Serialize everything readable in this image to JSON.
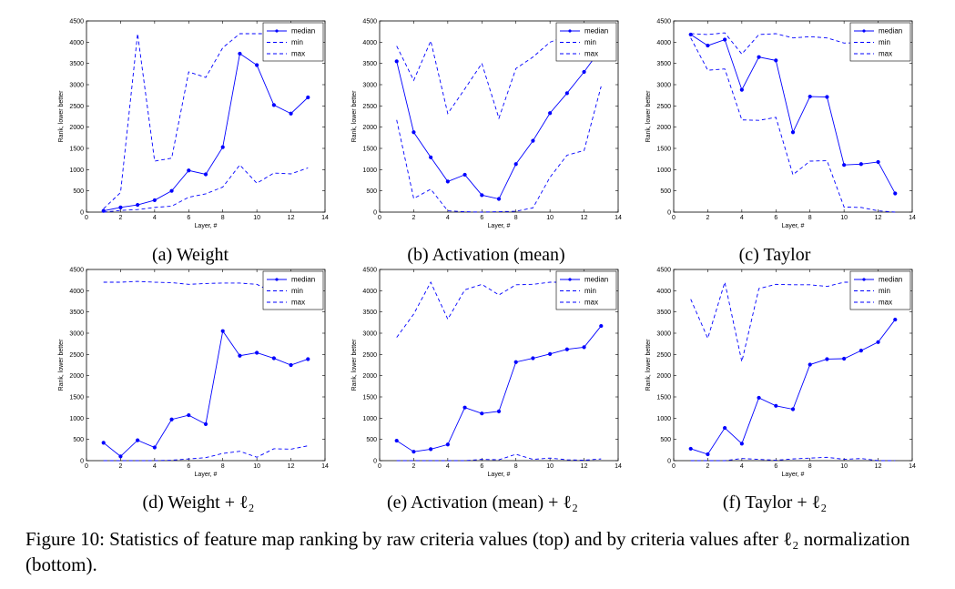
{
  "figure_caption": "Figure 10: Statistics of feature map ranking by raw criteria values (top) and by criteria values after ℓ₂ normalization (bottom).",
  "colors": {
    "line": "#0000ff",
    "axis": "#000000"
  },
  "chart_data": [
    {
      "type": "line",
      "caption": "(a) Weight",
      "xlabel": "Layer, #",
      "ylabel": "Rank, lower better",
      "xlim": [
        0,
        14
      ],
      "ylim": [
        0,
        4500
      ],
      "xticks": [
        0,
        2,
        4,
        6,
        8,
        10,
        12,
        14
      ],
      "yticks": [
        0,
        500,
        1000,
        1500,
        2000,
        2500,
        3000,
        3500,
        4000,
        4500
      ],
      "legend": "top-right",
      "x": [
        1,
        2,
        3,
        4,
        5,
        6,
        7,
        8,
        9,
        10,
        11,
        12,
        13
      ],
      "series": [
        {
          "name": "median",
          "style": "solid-marker",
          "values": [
            30,
            110,
            170,
            280,
            500,
            980,
            890,
            1530,
            3730,
            3460,
            2520,
            2320,
            2700
          ]
        },
        {
          "name": "min",
          "style": "dashed",
          "values": [
            0,
            40,
            60,
            110,
            140,
            350,
            430,
            590,
            1110,
            680,
            920,
            900,
            1040
          ]
        },
        {
          "name": "max",
          "style": "dashed",
          "values": [
            80,
            460,
            4200,
            1200,
            1270,
            3300,
            3170,
            3870,
            4200,
            4200,
            4200,
            4200,
            4200
          ]
        }
      ]
    },
    {
      "type": "line",
      "caption": "(b) Activation (mean)",
      "xlabel": "Layer, #",
      "ylabel": "Rank, lower better",
      "xlim": [
        0,
        14
      ],
      "ylim": [
        0,
        4500
      ],
      "xticks": [
        0,
        2,
        4,
        6,
        8,
        10,
        12,
        14
      ],
      "yticks": [
        0,
        500,
        1000,
        1500,
        2000,
        2500,
        3000,
        3500,
        4000,
        4500
      ],
      "legend": "top-right",
      "x": [
        1,
        2,
        3,
        4,
        5,
        6,
        7,
        8,
        9,
        10,
        11,
        12,
        13
      ],
      "series": [
        {
          "name": "median",
          "style": "solid-marker",
          "values": [
            3550,
            1880,
            1290,
            720,
            880,
            400,
            310,
            1130,
            1680,
            2330,
            2800,
            3300,
            3850
          ]
        },
        {
          "name": "min",
          "style": "dashed",
          "values": [
            2170,
            320,
            540,
            30,
            10,
            0,
            10,
            20,
            100,
            820,
            1340,
            1450,
            2960
          ]
        },
        {
          "name": "max",
          "style": "dashed",
          "values": [
            3910,
            3100,
            4030,
            2320,
            2900,
            3500,
            2210,
            3380,
            3650,
            4000,
            4150,
            4200,
            4200
          ]
        }
      ]
    },
    {
      "type": "line",
      "caption": "(c) Taylor",
      "xlabel": "Layer, #",
      "ylabel": "Rank, lower better",
      "xlim": [
        0,
        14
      ],
      "ylim": [
        0,
        4500
      ],
      "xticks": [
        0,
        2,
        4,
        6,
        8,
        10,
        12,
        14
      ],
      "yticks": [
        0,
        500,
        1000,
        1500,
        2000,
        2500,
        3000,
        3500,
        4000,
        4500
      ],
      "legend": "top-right",
      "x": [
        1,
        2,
        3,
        4,
        5,
        6,
        7,
        8,
        9,
        10,
        11,
        12,
        13
      ],
      "series": [
        {
          "name": "median",
          "style": "solid-marker",
          "values": [
            4180,
            3920,
            4060,
            2880,
            3650,
            3570,
            1880,
            2720,
            2710,
            1110,
            1130,
            1180,
            440
          ]
        },
        {
          "name": "min",
          "style": "dashed",
          "values": [
            4100,
            3340,
            3370,
            2170,
            2160,
            2230,
            880,
            1200,
            1210,
            120,
            110,
            30,
            0
          ]
        },
        {
          "name": "max",
          "style": "dashed",
          "values": [
            4200,
            4180,
            4220,
            3720,
            4180,
            4200,
            4100,
            4130,
            4100,
            3980,
            3990,
            4000,
            4050
          ]
        }
      ]
    },
    {
      "type": "line",
      "caption": "(d) Weight + ℓ₂",
      "xlabel": "Layer, #",
      "ylabel": "Rank, lower better",
      "xlim": [
        0,
        14
      ],
      "ylim": [
        0,
        4500
      ],
      "xticks": [
        0,
        2,
        4,
        6,
        8,
        10,
        12,
        14
      ],
      "yticks": [
        0,
        500,
        1000,
        1500,
        2000,
        2500,
        3000,
        3500,
        4000,
        4500
      ],
      "legend": "top-right",
      "x": [
        1,
        2,
        3,
        4,
        5,
        6,
        7,
        8,
        9,
        10,
        11,
        12,
        13
      ],
      "series": [
        {
          "name": "median",
          "style": "solid-marker",
          "values": [
            420,
            100,
            480,
            310,
            970,
            1070,
            860,
            3050,
            2470,
            2540,
            2410,
            2250,
            2390
          ]
        },
        {
          "name": "min",
          "style": "dashed",
          "values": [
            0,
            0,
            0,
            0,
            10,
            40,
            70,
            170,
            220,
            80,
            280,
            270,
            350
          ]
        },
        {
          "name": "max",
          "style": "dashed",
          "values": [
            4200,
            4200,
            4220,
            4200,
            4190,
            4150,
            4170,
            4180,
            4180,
            4150,
            3950,
            3950,
            3950
          ]
        }
      ]
    },
    {
      "type": "line",
      "caption": "(e) Activation (mean) + ℓ₂",
      "xlabel": "Layer, #",
      "ylabel": "Rank, lower better",
      "xlim": [
        0,
        14
      ],
      "ylim": [
        0,
        4500
      ],
      "xticks": [
        0,
        2,
        4,
        6,
        8,
        10,
        12,
        14
      ],
      "yticks": [
        0,
        500,
        1000,
        1500,
        2000,
        2500,
        3000,
        3500,
        4000,
        4500
      ],
      "legend": "top-right",
      "x": [
        1,
        2,
        3,
        4,
        5,
        6,
        7,
        8,
        9,
        10,
        11,
        12,
        13
      ],
      "series": [
        {
          "name": "median",
          "style": "solid-marker",
          "values": [
            470,
            210,
            270,
            380,
            1250,
            1110,
            1160,
            2320,
            2410,
            2510,
            2620,
            2670,
            3170
          ]
        },
        {
          "name": "min",
          "style": "dashed",
          "values": [
            0,
            0,
            0,
            0,
            0,
            30,
            20,
            150,
            30,
            60,
            20,
            10,
            40
          ]
        },
        {
          "name": "max",
          "style": "dashed",
          "values": [
            2900,
            3450,
            4200,
            3330,
            4020,
            4150,
            3900,
            4140,
            4150,
            4200,
            4200,
            4200,
            4200
          ]
        }
      ]
    },
    {
      "type": "line",
      "caption": "(f) Taylor + ℓ₂",
      "xlabel": "Layer, #",
      "ylabel": "Rank, lower better",
      "xlim": [
        0,
        14
      ],
      "ylim": [
        0,
        4500
      ],
      "xticks": [
        0,
        2,
        4,
        6,
        8,
        10,
        12,
        14
      ],
      "yticks": [
        0,
        500,
        1000,
        1500,
        2000,
        2500,
        3000,
        3500,
        4000,
        4500
      ],
      "legend": "top-right",
      "x": [
        1,
        2,
        3,
        4,
        5,
        6,
        7,
        8,
        9,
        10,
        11,
        12,
        13
      ],
      "series": [
        {
          "name": "median",
          "style": "solid-marker",
          "values": [
            280,
            150,
            770,
            400,
            1480,
            1290,
            1210,
            2260,
            2390,
            2400,
            2590,
            2790,
            3320
          ]
        },
        {
          "name": "min",
          "style": "dashed",
          "values": [
            0,
            0,
            0,
            50,
            30,
            10,
            40,
            60,
            80,
            30,
            50,
            0,
            0
          ]
        },
        {
          "name": "max",
          "style": "dashed",
          "values": [
            3800,
            2880,
            4200,
            2330,
            4050,
            4150,
            4140,
            4140,
            4100,
            4200,
            4200,
            4200,
            4200
          ]
        }
      ]
    }
  ]
}
